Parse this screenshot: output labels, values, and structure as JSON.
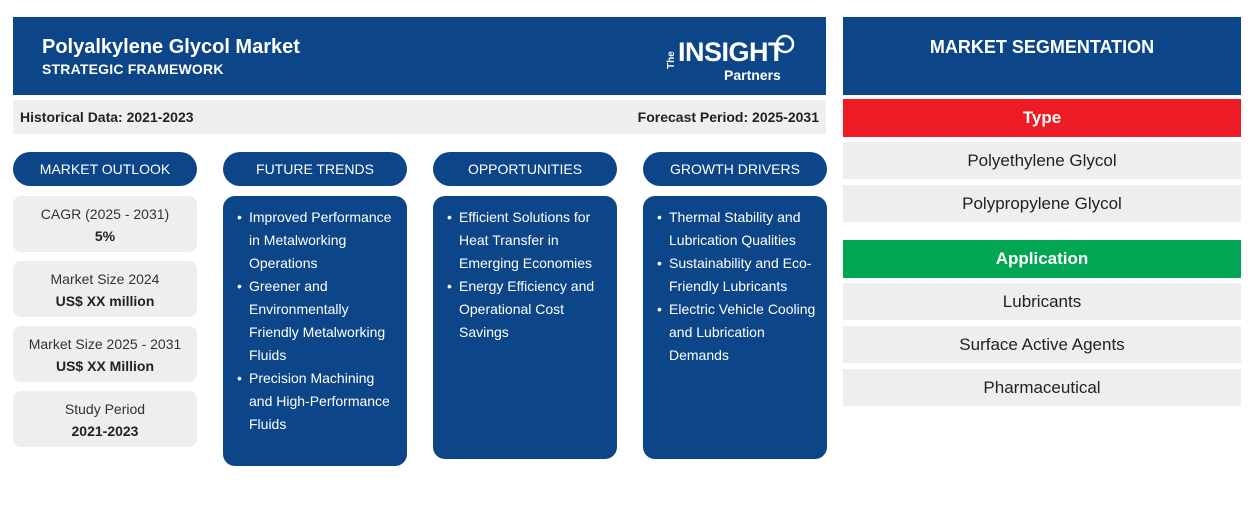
{
  "header": {
    "title": "Polyalkylene Glycol Market",
    "subtitle": "STRATEGIC FRAMEWORK",
    "logo": {
      "the": "The",
      "insight": "INSIGHT",
      "partners": "Partners"
    }
  },
  "periods": {
    "historical": "Historical Data: 2021-2023",
    "forecast": "Forecast Period: 2025-2031"
  },
  "columns": {
    "outlook": "MARKET OUTLOOK",
    "trends": "FUTURE TRENDS",
    "opportunities": "OPPORTUNITIES",
    "drivers": "GROWTH DRIVERS"
  },
  "outlook": [
    {
      "label": "CAGR (2025 - 2031)",
      "value": "5%"
    },
    {
      "label": "Market Size 2024",
      "value": "US$ XX million"
    },
    {
      "label": "Market Size 2025 - 2031",
      "value": "US$ XX Million"
    },
    {
      "label": "Study Period",
      "value": "2021-2023"
    }
  ],
  "trends": [
    "Improved Performance in Metalworking Operations",
    "Greener and Environmentally Friendly Metalworking Fluids",
    "Precision Machining and High-Performance Fluids"
  ],
  "opportunities": [
    "Efficient Solutions for Heat Transfer in Emerging Economies",
    "Energy Efficiency and Operational Cost Savings"
  ],
  "drivers": [
    "Thermal Stability and Lubrication Qualities",
    "Sustainability and Eco-Friendly Lubricants",
    "Electric Vehicle Cooling and Lubrication Demands"
  ],
  "segmentation": {
    "title": "MARKET SEGMENTATION",
    "type": {
      "heading": "Type",
      "color": "#ed1c24",
      "items": [
        "Polyethylene Glycol",
        "Polypropylene Glycol"
      ]
    },
    "application": {
      "heading": "Application",
      "color": "#00a651",
      "items": [
        "Lubricants",
        "Surface Active Agents",
        "Pharmaceutical"
      ]
    }
  }
}
